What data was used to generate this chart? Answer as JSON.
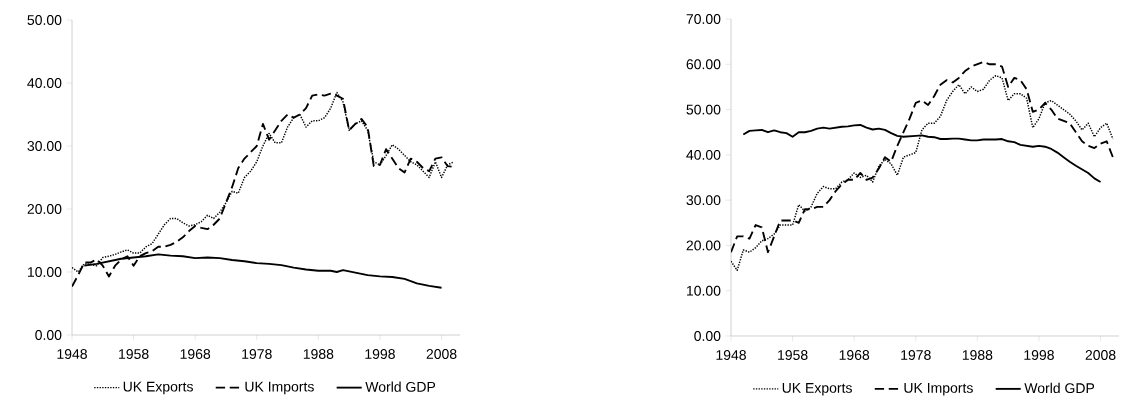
{
  "chart_data": [
    {
      "type": "line",
      "x": [
        1948,
        1949,
        1950,
        1951,
        1952,
        1953,
        1954,
        1955,
        1956,
        1957,
        1958,
        1959,
        1960,
        1961,
        1962,
        1963,
        1964,
        1965,
        1966,
        1967,
        1968,
        1969,
        1970,
        1971,
        1972,
        1973,
        1974,
        1975,
        1976,
        1977,
        1978,
        1979,
        1980,
        1981,
        1982,
        1983,
        1984,
        1985,
        1986,
        1987,
        1988,
        1989,
        1990,
        1991,
        1992,
        1993,
        1994,
        1995,
        1996,
        1997,
        1998,
        1999,
        2000,
        2001,
        2002,
        2003,
        2004,
        2005,
        2006,
        2007,
        2008,
        2009,
        2010
      ],
      "xlim": [
        1948,
        2011
      ],
      "xticks": [
        1948,
        1958,
        1968,
        1978,
        1988,
        1998,
        2008
      ],
      "ylim": [
        0,
        50
      ],
      "yticks": [
        {
          "value": 0,
          "label": "0.00"
        },
        {
          "value": 10,
          "label": "10.00"
        },
        {
          "value": 20,
          "label": "20.00"
        },
        {
          "value": 30,
          "label": "30.00"
        },
        {
          "value": 40,
          "label": "40.00"
        },
        {
          "value": 50,
          "label": "50.00"
        }
      ],
      "legend": "bottom",
      "grid": false,
      "series": [
        {
          "name": "UK Exports",
          "color": "#000000",
          "line_style": "dotted",
          "values": [
            10.7,
            10,
            11.3,
            11.2,
            11,
            12.3,
            12.5,
            12.8,
            13.2,
            13.5,
            13,
            13,
            14,
            14.5,
            16,
            17.5,
            18.5,
            18.5,
            17.8,
            17.3,
            17.5,
            18,
            19,
            18.5,
            19.5,
            21,
            22.8,
            22.5,
            25,
            26,
            27.5,
            30,
            32,
            30.5,
            30.5,
            33,
            34.5,
            35,
            33,
            34,
            34,
            34.5,
            36,
            38.5,
            37,
            32.5,
            33.5,
            34,
            32.5,
            27.5,
            27,
            28.5,
            30.2,
            29.5,
            28.5,
            27.5,
            27,
            26,
            25,
            27.5,
            25,
            27,
            27.5
          ]
        },
        {
          "name": "UK Imports",
          "color": "#000000",
          "line_style": "dashed",
          "values": [
            7.7,
            9.5,
            11.5,
            11.5,
            12,
            11,
            9.3,
            11,
            12,
            12.5,
            11,
            12.5,
            13,
            13.3,
            14,
            14,
            14.3,
            14.8,
            15.5,
            16.5,
            17.3,
            17,
            16.8,
            17.5,
            18.5,
            21,
            23.5,
            26.5,
            28,
            29,
            30,
            33.5,
            31,
            32.5,
            34,
            35,
            34.5,
            35,
            36,
            38,
            38.2,
            38,
            38.3,
            38,
            37.5,
            32.5,
            33.5,
            34.3,
            33,
            26.8,
            27,
            29.5,
            28,
            26.5,
            25.8,
            28,
            27.5,
            26.5,
            26,
            28,
            28.2,
            26.8,
            26.7
          ]
        },
        {
          "name": "World GDP",
          "color": "#000000",
          "line_style": "solid",
          "x": [
            1950,
            1952,
            1954,
            1956,
            1958,
            1960,
            1962,
            1964,
            1966,
            1968,
            1970,
            1972,
            1974,
            1976,
            1978,
            1980,
            1982,
            1984,
            1986,
            1988,
            1990,
            1991,
            1992,
            1994,
            1996,
            1998,
            2000,
            2002,
            2004,
            2006,
            2008
          ],
          "values": [
            11,
            11.3,
            11.7,
            12.1,
            12.3,
            12.5,
            12.8,
            12.6,
            12.5,
            12.2,
            12.3,
            12.2,
            11.9,
            11.7,
            11.4,
            11.3,
            11.1,
            10.7,
            10.4,
            10.2,
            10.2,
            10,
            10.3,
            9.9,
            9.5,
            9.3,
            9.2,
            8.9,
            8.2,
            7.8,
            7.5
          ]
        }
      ]
    },
    {
      "type": "line",
      "x": [
        1948,
        1949,
        1950,
        1951,
        1952,
        1953,
        1954,
        1955,
        1956,
        1957,
        1958,
        1959,
        1960,
        1961,
        1962,
        1963,
        1964,
        1965,
        1966,
        1967,
        1968,
        1969,
        1970,
        1971,
        1972,
        1973,
        1974,
        1975,
        1976,
        1977,
        1978,
        1979,
        1980,
        1981,
        1982,
        1983,
        1984,
        1985,
        1986,
        1987,
        1988,
        1989,
        1990,
        1991,
        1992,
        1993,
        1994,
        1995,
        1996,
        1997,
        1998,
        1999,
        2000,
        2001,
        2002,
        2003,
        2004,
        2005,
        2006,
        2007,
        2008,
        2009,
        2010
      ],
      "xlim": [
        1948,
        2011
      ],
      "xticks": [
        1948,
        1958,
        1968,
        1978,
        1988,
        1998,
        2008
      ],
      "ylim": [
        0,
        70
      ],
      "yticks": [
        {
          "value": 0,
          "label": "0.00"
        },
        {
          "value": 10,
          "label": "10.00"
        },
        {
          "value": 20,
          "label": "20.00"
        },
        {
          "value": 30,
          "label": "30.00"
        },
        {
          "value": 40,
          "label": "40.00"
        },
        {
          "value": 50,
          "label": "50.00"
        },
        {
          "value": 60,
          "label": "60.00"
        },
        {
          "value": 70,
          "label": "70.00"
        }
      ],
      "legend": "bottom",
      "grid": false,
      "series": [
        {
          "name": "UK Exports",
          "color": "#000000",
          "line_style": "dotted",
          "values": [
            16.5,
            14.5,
            19,
            18.5,
            19.5,
            21,
            21.5,
            22.5,
            24.5,
            24.5,
            24.5,
            29,
            27.5,
            28.5,
            31.5,
            33,
            32.5,
            32.5,
            34,
            34.5,
            36,
            35,
            35.5,
            34,
            37.5,
            39,
            38,
            35.5,
            39.5,
            40,
            40.5,
            45.5,
            47,
            47,
            48.5,
            52,
            54,
            55.5,
            53.5,
            55,
            54,
            54.5,
            56.5,
            57.5,
            57,
            52,
            53.5,
            53.5,
            52.5,
            46,
            48,
            51.5,
            52,
            51,
            50,
            49,
            47.5,
            45.5,
            47,
            44,
            46,
            47,
            43.5
          ]
        },
        {
          "name": "UK Imports",
          "color": "#000000",
          "line_style": "dashed",
          "values": [
            18.5,
            22,
            22,
            21.5,
            24.5,
            24,
            18.5,
            22,
            25.5,
            25.5,
            25.5,
            25,
            28,
            28,
            28.5,
            28.5,
            30,
            32,
            33.5,
            34.5,
            34.5,
            36,
            34.5,
            35,
            37,
            39.5,
            38.5,
            42,
            45,
            48,
            51.5,
            52,
            51,
            53,
            55.5,
            56.5,
            56,
            57,
            58.5,
            59.5,
            60,
            60.5,
            60,
            60,
            59.5,
            55,
            57,
            56.5,
            54.5,
            49.5,
            50,
            51.5,
            50,
            48,
            47.5,
            47,
            45,
            43,
            42,
            41.5,
            42.5,
            43,
            39.5
          ]
        },
        {
          "name": "World GDP",
          "color": "#000000",
          "line_style": "solid",
          "x": [
            1950,
            1951,
            1952,
            1953,
            1954,
            1955,
            1956,
            1957,
            1958,
            1959,
            1960,
            1961,
            1962,
            1963,
            1964,
            1965,
            1966,
            1967,
            1968,
            1969,
            1970,
            1971,
            1972,
            1973,
            1974,
            1975,
            1976,
            1977,
            1978,
            1979,
            1980,
            1981,
            1982,
            1983,
            1984,
            1985,
            1986,
            1987,
            1988,
            1989,
            1990,
            1991,
            1992,
            1993,
            1994,
            1995,
            1996,
            1997,
            1998,
            1999,
            2000,
            2001,
            2002,
            2003,
            2004,
            2005,
            2006,
            2007,
            2008
          ],
          "values": [
            44.5,
            45.3,
            45.4,
            45.5,
            45,
            45.4,
            45,
            44.8,
            44,
            45,
            45,
            45.3,
            45.8,
            46,
            45.8,
            46,
            46.2,
            46.3,
            46.5,
            46.6,
            46,
            45.6,
            45.8,
            45.5,
            44.8,
            44.2,
            44,
            44.1,
            44.2,
            44.3,
            44,
            43.9,
            43.5,
            43.5,
            43.6,
            43.6,
            43.4,
            43.2,
            43.2,
            43.4,
            43.4,
            43.4,
            43.5,
            43,
            42.8,
            42.2,
            42,
            41.8,
            42,
            41.8,
            41.3,
            40.5,
            39.5,
            38.5,
            37.6,
            36.8,
            36,
            34.8,
            34
          ]
        }
      ]
    }
  ]
}
